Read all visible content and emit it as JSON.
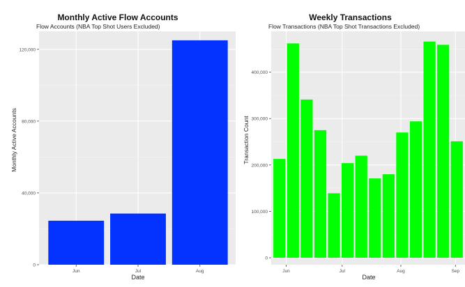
{
  "chart_data": [
    {
      "type": "bar",
      "title": "Monthly Active Flow Accounts",
      "subtitle": "Flow Accounts (NBA Top Shot Users Excluded)",
      "xlabel": "Date",
      "ylabel": "Monthly Active Accounts",
      "categories": [
        "Jun",
        "Jul",
        "Aug"
      ],
      "values": [
        24500,
        28500,
        125000
      ],
      "ylim": [
        0,
        130000
      ],
      "yticks": [
        0,
        40000,
        80000,
        120000
      ],
      "ytick_labels": [
        "0",
        "40,000",
        "80,000",
        "120,000"
      ],
      "bar_color": "#0433ff",
      "grid": true
    },
    {
      "type": "bar",
      "title": "Weekly Transactions",
      "subtitle": "Flow Transactions (NBA Top Shot Transactions Excluded)",
      "xlabel": "Date",
      "ylabel": "Transaction Count",
      "xtick_labels": [
        "Jun",
        "Jul",
        "Aug",
        "Sep"
      ],
      "xtick_positions": [
        0.5,
        4.6,
        8.9,
        12.9
      ],
      "values": [
        213000,
        462000,
        341000,
        275000,
        139000,
        204000,
        220000,
        171000,
        180000,
        270000,
        294000,
        466000,
        459000,
        251000
      ],
      "ylim": [
        -15000,
        488000
      ],
      "yticks": [
        0,
        100000,
        200000,
        300000,
        400000
      ],
      "ytick_labels": [
        "0",
        "100,000",
        "200,000",
        "300,000",
        "400,000"
      ],
      "bar_color": "#00ff00",
      "grid": true
    }
  ]
}
